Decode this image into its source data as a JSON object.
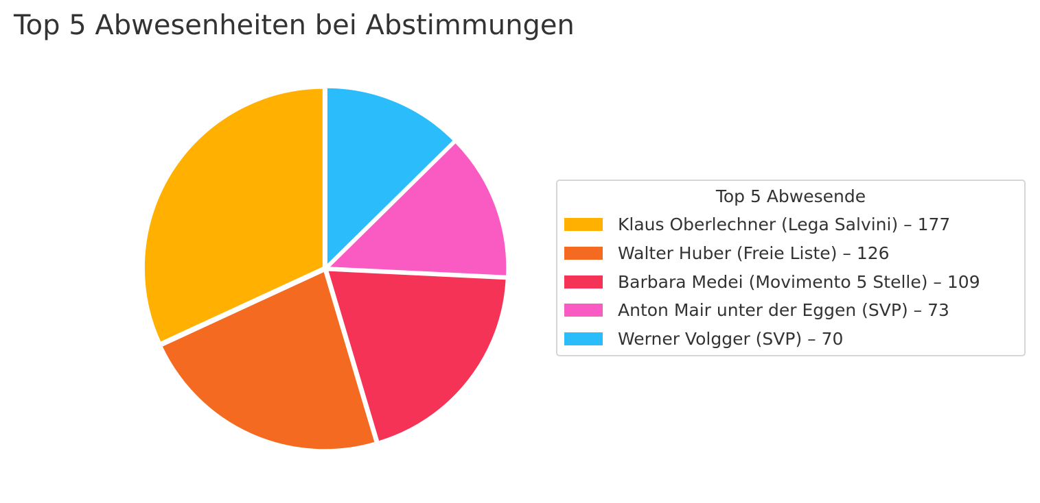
{
  "chart_data": {
    "type": "pie",
    "title": "Top 5 Abwesenheiten bei Abstimmungen",
    "legend_title": "Top 5 Abwesende",
    "legend_position": "right",
    "slices": [
      {
        "label": "Klaus Oberlechner (Lega Salvini) – 177",
        "value": 177,
        "color": "#FFB000"
      },
      {
        "label": "Walter Huber (Freie Liste) – 126",
        "value": 126,
        "color": "#F46A21"
      },
      {
        "label": "Barbara Medei (Movimento 5 Stelle) – 109",
        "value": 109,
        "color": "#F53357"
      },
      {
        "label": "Anton Mair unter der Eggen (SVP) – 73",
        "value": 73,
        "color": "#F95BC2"
      },
      {
        "label": "Werner Volgger (SVP) – 70",
        "value": 70,
        "color": "#2BBDFB"
      }
    ]
  }
}
